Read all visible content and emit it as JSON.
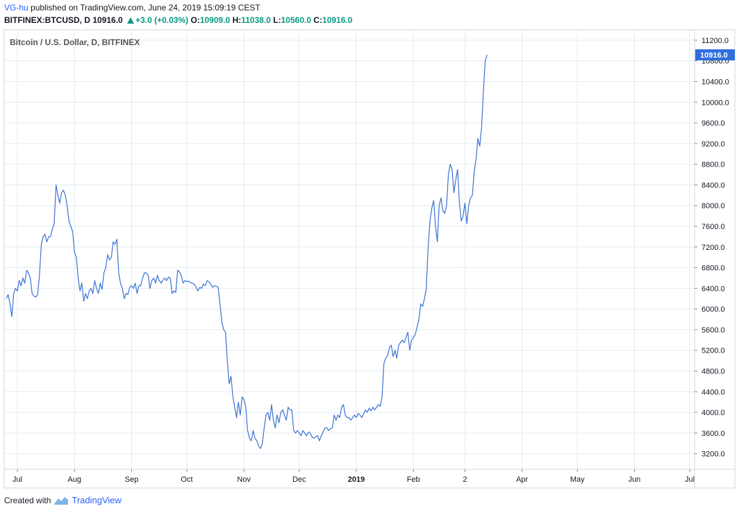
{
  "header": {
    "author": "VG-hu",
    "published_text": "published on TradingView.com, June 24, 2019 15:09:19 CEST",
    "symbol": "BITFINEX:BTCUSD, D",
    "last": "10916.0",
    "change": "+3.0 (+0.03%)",
    "o_label": "O:",
    "o_value": "10909.0",
    "h_label": "H:",
    "h_value": "11038.0",
    "l_label": "L:",
    "l_value": "10560.0",
    "c_label": "C:",
    "c_value": "10916.0"
  },
  "legend": {
    "title": "Bitcoin / U.S. Dollar, D, BITFINEX"
  },
  "footer": {
    "created_with": "Created with",
    "brand": "TradingView"
  },
  "colors": {
    "line": "#3a72d4",
    "grid": "#e1ecf2",
    "last_price_bg": "#2f6fdc",
    "green": "#089981"
  },
  "chart_data": {
    "type": "line",
    "title": "Bitcoin / U.S. Dollar, D, BITFINEX",
    "ylim": [
      2900,
      11400
    ],
    "y_ticks": [
      3200,
      3600,
      4000,
      4400,
      4800,
      5200,
      5600,
      6000,
      6400,
      6800,
      7200,
      7600,
      8000,
      8400,
      8800,
      9200,
      9600,
      10000,
      10400,
      10800,
      11200
    ],
    "x_ticks": [
      {
        "label": "Jul",
        "day": 0
      },
      {
        "label": "Aug",
        "day": 31
      },
      {
        "label": "Sep",
        "day": 62
      },
      {
        "label": "Oct",
        "day": 92
      },
      {
        "label": "Nov",
        "day": 123
      },
      {
        "label": "Dec",
        "day": 153
      },
      {
        "label": "2019",
        "day": 184,
        "bold": true
      },
      {
        "label": "Feb",
        "day": 215
      },
      {
        "label": "2",
        "day": 243
      },
      {
        "label": "Apr",
        "day": 274
      },
      {
        "label": "May",
        "day": 304
      },
      {
        "label": "Jun",
        "day": 335
      },
      {
        "label": "Jul",
        "day": 365
      }
    ],
    "last_price": 10916.0,
    "last_price_label": "10916.0",
    "series": [
      {
        "name": "BTCUSD",
        "points": [
          [
            -6,
            6200
          ],
          [
            -5,
            6280
          ],
          [
            -4,
            6100
          ],
          [
            -3,
            5850
          ],
          [
            -2,
            6300
          ],
          [
            -1,
            6400
          ],
          [
            0,
            6350
          ],
          [
            1,
            6550
          ],
          [
            2,
            6450
          ],
          [
            3,
            6600
          ],
          [
            4,
            6500
          ],
          [
            5,
            6750
          ],
          [
            6,
            6700
          ],
          [
            7,
            6600
          ],
          [
            8,
            6300
          ],
          [
            9,
            6250
          ],
          [
            10,
            6230
          ],
          [
            11,
            6280
          ],
          [
            12,
            6650
          ],
          [
            13,
            7250
          ],
          [
            14,
            7400
          ],
          [
            15,
            7450
          ],
          [
            16,
            7300
          ],
          [
            17,
            7400
          ],
          [
            18,
            7400
          ],
          [
            19,
            7550
          ],
          [
            20,
            7650
          ],
          [
            21,
            8400
          ],
          [
            22,
            8200
          ],
          [
            23,
            8050
          ],
          [
            24,
            8250
          ],
          [
            25,
            8300
          ],
          [
            26,
            8200
          ],
          [
            27,
            8000
          ],
          [
            28,
            7700
          ],
          [
            29,
            7600
          ],
          [
            30,
            7500
          ],
          [
            31,
            7100
          ],
          [
            32,
            7000
          ],
          [
            33,
            6600
          ],
          [
            34,
            6350
          ],
          [
            35,
            6500
          ],
          [
            36,
            6150
          ],
          [
            37,
            6300
          ],
          [
            38,
            6200
          ],
          [
            39,
            6350
          ],
          [
            40,
            6400
          ],
          [
            41,
            6300
          ],
          [
            42,
            6550
          ],
          [
            43,
            6400
          ],
          [
            44,
            6300
          ],
          [
            45,
            6500
          ],
          [
            46,
            6380
          ],
          [
            47,
            6700
          ],
          [
            48,
            6800
          ],
          [
            49,
            7050
          ],
          [
            50,
            6950
          ],
          [
            51,
            7000
          ],
          [
            52,
            7300
          ],
          [
            53,
            7250
          ],
          [
            54,
            7350
          ],
          [
            55,
            6700
          ],
          [
            56,
            6500
          ],
          [
            57,
            6400
          ],
          [
            58,
            6200
          ],
          [
            59,
            6300
          ],
          [
            60,
            6280
          ],
          [
            61,
            6420
          ],
          [
            62,
            6450
          ],
          [
            63,
            6400
          ],
          [
            64,
            6500
          ],
          [
            65,
            6300
          ],
          [
            66,
            6450
          ],
          [
            67,
            6450
          ],
          [
            68,
            6600
          ],
          [
            69,
            6700
          ],
          [
            70,
            6700
          ],
          [
            71,
            6650
          ],
          [
            72,
            6400
          ],
          [
            73,
            6550
          ],
          [
            74,
            6600
          ],
          [
            75,
            6500
          ],
          [
            76,
            6650
          ],
          [
            77,
            6550
          ],
          [
            78,
            6500
          ],
          [
            79,
            6560
          ],
          [
            80,
            6600
          ],
          [
            81,
            6550
          ],
          [
            82,
            6620
          ],
          [
            83,
            6600
          ],
          [
            84,
            6300
          ],
          [
            85,
            6350
          ],
          [
            86,
            6320
          ],
          [
            87,
            6750
          ],
          [
            88,
            6720
          ],
          [
            89,
            6650
          ],
          [
            90,
            6500
          ],
          [
            91,
            6550
          ],
          [
            92,
            6530
          ],
          [
            93,
            6540
          ],
          [
            94,
            6510
          ],
          [
            95,
            6500
          ],
          [
            96,
            6480
          ],
          [
            97,
            6430
          ],
          [
            98,
            6350
          ],
          [
            99,
            6420
          ],
          [
            100,
            6400
          ],
          [
            101,
            6480
          ],
          [
            102,
            6450
          ],
          [
            103,
            6550
          ],
          [
            104,
            6520
          ],
          [
            105,
            6480
          ],
          [
            106,
            6420
          ],
          [
            107,
            6450
          ],
          [
            108,
            6440
          ],
          [
            109,
            6420
          ],
          [
            110,
            6100
          ],
          [
            111,
            5750
          ],
          [
            112,
            5600
          ],
          [
            113,
            5550
          ],
          [
            114,
            5000
          ],
          [
            115,
            4550
          ],
          [
            116,
            4700
          ],
          [
            117,
            4300
          ],
          [
            118,
            4100
          ],
          [
            119,
            3900
          ],
          [
            120,
            4200
          ],
          [
            121,
            3950
          ],
          [
            122,
            4300
          ],
          [
            123,
            4250
          ],
          [
            124,
            4100
          ],
          [
            125,
            3650
          ],
          [
            126,
            3500
          ],
          [
            127,
            3450
          ],
          [
            128,
            3650
          ],
          [
            129,
            3500
          ],
          [
            130,
            3450
          ],
          [
            131,
            3350
          ],
          [
            132,
            3300
          ],
          [
            133,
            3400
          ],
          [
            134,
            3700
          ],
          [
            135,
            3950
          ],
          [
            136,
            4000
          ],
          [
            137,
            3850
          ],
          [
            138,
            4150
          ],
          [
            139,
            3850
          ],
          [
            140,
            3700
          ],
          [
            141,
            3950
          ],
          [
            142,
            3800
          ],
          [
            143,
            4000
          ],
          [
            144,
            4050
          ],
          [
            145,
            3950
          ],
          [
            146,
            3850
          ],
          [
            147,
            4100
          ],
          [
            148,
            4050
          ],
          [
            149,
            4050
          ],
          [
            150,
            3650
          ],
          [
            151,
            3600
          ],
          [
            152,
            3650
          ],
          [
            153,
            3600
          ],
          [
            154,
            3550
          ],
          [
            155,
            3650
          ],
          [
            156,
            3600
          ],
          [
            157,
            3550
          ],
          [
            158,
            3620
          ],
          [
            159,
            3600
          ],
          [
            160,
            3520
          ],
          [
            161,
            3500
          ],
          [
            162,
            3530
          ],
          [
            163,
            3550
          ],
          [
            164,
            3450
          ],
          [
            165,
            3550
          ],
          [
            166,
            3620
          ],
          [
            167,
            3700
          ],
          [
            168,
            3700
          ],
          [
            169,
            3650
          ],
          [
            170,
            3680
          ],
          [
            171,
            3700
          ],
          [
            172,
            3950
          ],
          [
            173,
            3850
          ],
          [
            174,
            3950
          ],
          [
            175,
            3900
          ],
          [
            176,
            4100
          ],
          [
            177,
            4150
          ],
          [
            178,
            3950
          ],
          [
            179,
            3900
          ],
          [
            180,
            3900
          ],
          [
            181,
            3850
          ],
          [
            182,
            3900
          ],
          [
            183,
            3950
          ],
          [
            184,
            3900
          ],
          [
            185,
            3980
          ],
          [
            186,
            3950
          ],
          [
            187,
            3900
          ],
          [
            188,
            3970
          ],
          [
            189,
            4050
          ],
          [
            190,
            4000
          ],
          [
            191,
            4080
          ],
          [
            192,
            4030
          ],
          [
            193,
            4100
          ],
          [
            194,
            4050
          ],
          [
            195,
            4100
          ],
          [
            196,
            4150
          ],
          [
            197,
            4120
          ],
          [
            198,
            4300
          ],
          [
            199,
            4950
          ],
          [
            200,
            5050
          ],
          [
            201,
            5100
          ],
          [
            202,
            5250
          ],
          [
            203,
            5300
          ],
          [
            204,
            5080
          ],
          [
            205,
            5200
          ],
          [
            206,
            5050
          ],
          [
            207,
            5300
          ],
          [
            208,
            5350
          ],
          [
            209,
            5400
          ],
          [
            210,
            5350
          ],
          [
            211,
            5450
          ],
          [
            212,
            5550
          ],
          [
            213,
            5200
          ],
          [
            214,
            5400
          ],
          [
            215,
            5450
          ],
          [
            216,
            5500
          ],
          [
            217,
            5650
          ],
          [
            218,
            5800
          ],
          [
            219,
            6100
          ],
          [
            220,
            6050
          ],
          [
            221,
            6200
          ],
          [
            222,
            6400
          ],
          [
            223,
            7200
          ],
          [
            224,
            7700
          ],
          [
            225,
            7950
          ],
          [
            226,
            8100
          ],
          [
            227,
            7600
          ],
          [
            228,
            7300
          ],
          [
            229,
            8000
          ],
          [
            230,
            8150
          ],
          [
            231,
            7900
          ],
          [
            232,
            7850
          ],
          [
            233,
            8000
          ],
          [
            234,
            8600
          ],
          [
            235,
            8800
          ],
          [
            236,
            8700
          ],
          [
            237,
            8250
          ],
          [
            238,
            8500
          ],
          [
            239,
            8700
          ],
          [
            240,
            8050
          ],
          [
            241,
            7700
          ],
          [
            242,
            7800
          ],
          [
            243,
            8050
          ],
          [
            244,
            7650
          ],
          [
            245,
            8000
          ],
          [
            246,
            8150
          ],
          [
            247,
            8200
          ],
          [
            248,
            8650
          ],
          [
            249,
            8900
          ],
          [
            250,
            9300
          ],
          [
            251,
            9150
          ],
          [
            252,
            9500
          ],
          [
            253,
            10200
          ],
          [
            254,
            10800
          ],
          [
            255,
            10916
          ]
        ]
      }
    ]
  }
}
